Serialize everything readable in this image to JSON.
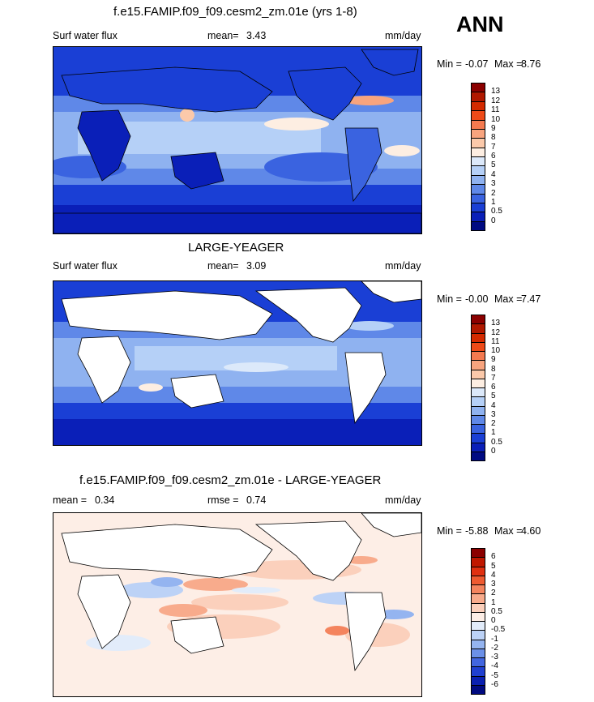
{
  "season": "ANN",
  "panels": [
    {
      "title": "f.e15.FAMIP.f09_f09.cesm2_zm.01e (yrs 1-8)",
      "left_label": "Surf water flux",
      "mid_label": "mean=",
      "mid_value": "3.43",
      "extra_label": "",
      "extra_value": "",
      "units": "mm/day",
      "min_label": "Min =",
      "min_value": "-0.07",
      "max_label": "Max =",
      "max_value": "8.76",
      "cb_labels": [
        "13",
        "12",
        "11",
        "10",
        "9",
        "8",
        "7",
        "6",
        "5",
        "4",
        "3",
        "2",
        "1",
        "0.5",
        "0"
      ],
      "cb_colors": [
        "#8b0000",
        "#b01800",
        "#d42a00",
        "#ee4a18",
        "#f47a50",
        "#f8a47e",
        "#fbc9aa",
        "#fdeee2",
        "#dce9fa",
        "#b5d0f7",
        "#8fb2f0",
        "#5f88e8",
        "#3a63e0",
        "#1a3fd5",
        "#0a1fb8",
        "#000a82"
      ],
      "map_type": "full",
      "chart_data": {
        "type": "heatmap",
        "variable": "Surf water flux",
        "units": "mm/day",
        "mean": 3.43,
        "min": -0.07,
        "max": 8.76,
        "contour_levels": [
          0,
          0.5,
          1,
          2,
          3,
          4,
          5,
          6,
          7,
          8,
          9,
          10,
          11,
          12,
          13
        ]
      }
    },
    {
      "title": "LARGE-YEAGER",
      "left_label": "Surf water flux",
      "mid_label": "mean=",
      "mid_value": "3.09",
      "extra_label": "",
      "extra_value": "",
      "units": "mm/day",
      "min_label": "Min =",
      "min_value": "-0.00",
      "max_label": "Max =",
      "max_value": "7.47",
      "cb_labels": [
        "13",
        "12",
        "11",
        "10",
        "9",
        "8",
        "7",
        "6",
        "5",
        "4",
        "3",
        "2",
        "1",
        "0.5",
        "0"
      ],
      "cb_colors": [
        "#8b0000",
        "#b01800",
        "#d42a00",
        "#ee4a18",
        "#f47a50",
        "#f8a47e",
        "#fbc9aa",
        "#fdeee2",
        "#dce9fa",
        "#b5d0f7",
        "#8fb2f0",
        "#5f88e8",
        "#3a63e0",
        "#1a3fd5",
        "#0a1fb8",
        "#000a82"
      ],
      "map_type": "ocean",
      "chart_data": {
        "type": "heatmap",
        "variable": "Surf water flux",
        "units": "mm/day",
        "mean": 3.09,
        "min": -0.0,
        "max": 7.47,
        "contour_levels": [
          0,
          0.5,
          1,
          2,
          3,
          4,
          5,
          6,
          7,
          8,
          9,
          10,
          11,
          12,
          13
        ]
      }
    },
    {
      "title": "f.e15.FAMIP.f09_f09.cesm2_zm.01e - LARGE-YEAGER",
      "left_label": "mean =",
      "left_value": "0.34",
      "mid_label": "rmse =",
      "mid_value": "0.74",
      "units": "mm/day",
      "min_label": "Min =",
      "min_value": "-5.88",
      "max_label": "Max =",
      "max_value": "4.60",
      "cb_labels": [
        "6",
        "5",
        "4",
        "3",
        "2",
        "1",
        "0.5",
        "0",
        "-0.5",
        "-1",
        "-2",
        "-3",
        "-4",
        "-5",
        "-6"
      ],
      "cb_colors": [
        "#8b0000",
        "#c01800",
        "#e03010",
        "#ee5a30",
        "#f4845e",
        "#f8ab8c",
        "#fbd0bc",
        "#fdeee6",
        "#e2ecfa",
        "#bcd2f6",
        "#94b4f0",
        "#6b90e8",
        "#4266e0",
        "#2040d0",
        "#0a20b0",
        "#000a80"
      ],
      "map_type": "diff",
      "chart_data": {
        "type": "heatmap",
        "variable": "Surf water flux difference",
        "units": "mm/day",
        "mean": 0.34,
        "rmse": 0.74,
        "min": -5.88,
        "max": 4.6,
        "contour_levels": [
          -6,
          -5,
          -4,
          -3,
          -2,
          -1,
          -0.5,
          0,
          0.5,
          1,
          2,
          3,
          4,
          5,
          6
        ]
      }
    }
  ]
}
